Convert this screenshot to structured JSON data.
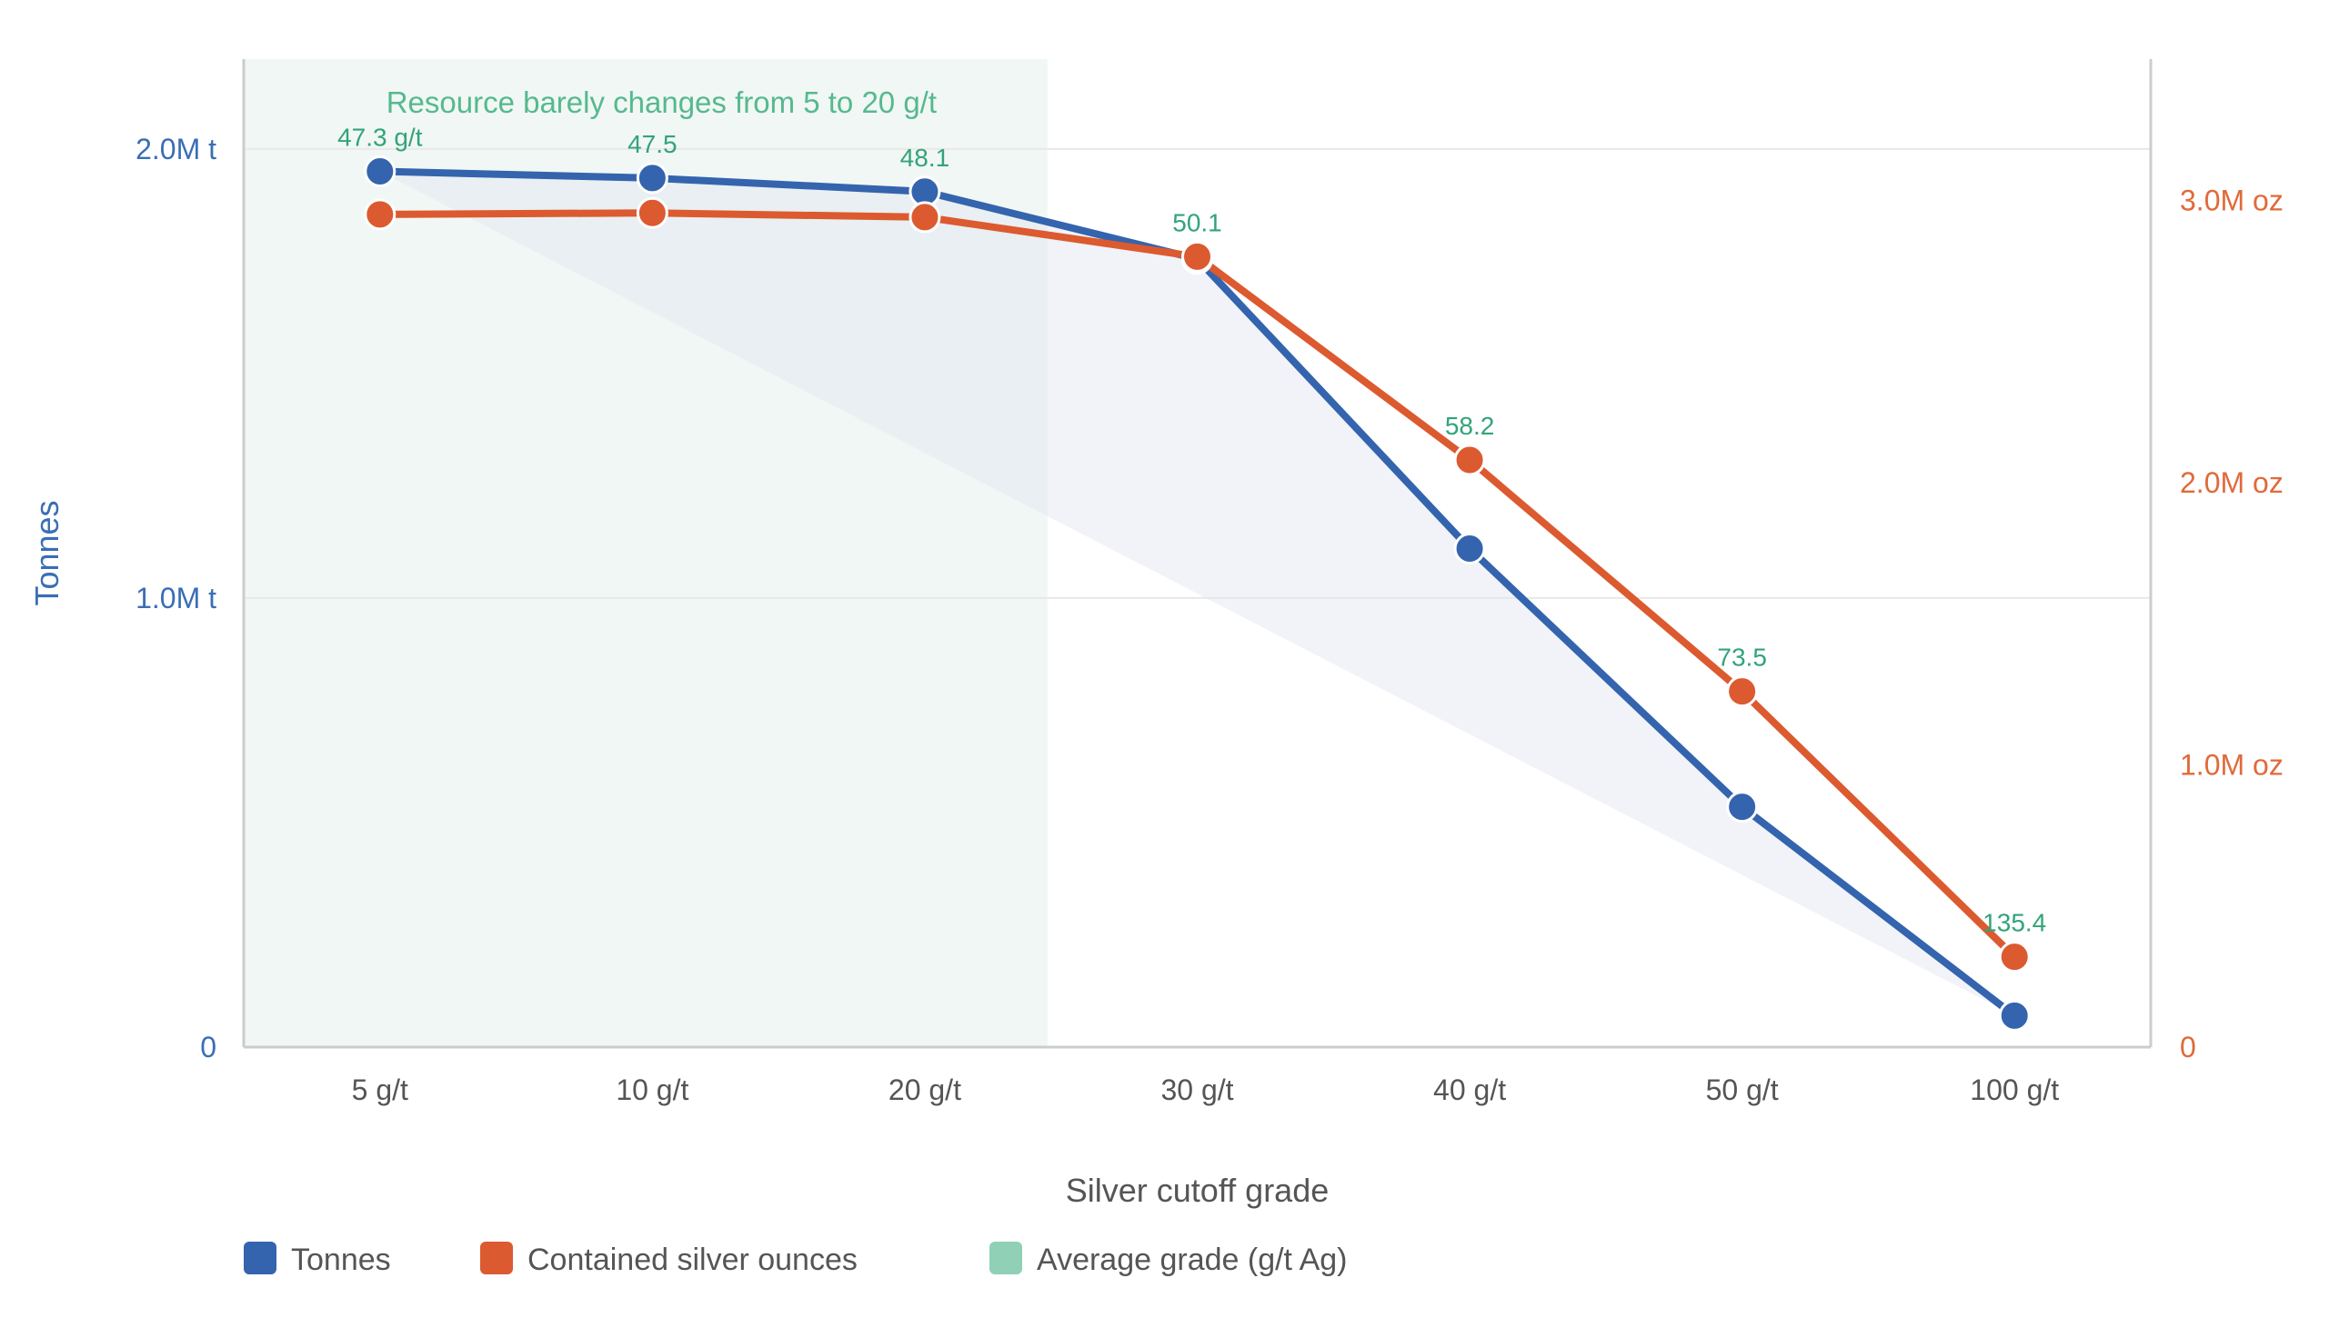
{
  "chart_data": {
    "type": "line",
    "categories": [
      "5 g/t",
      "10 g/t",
      "20 g/t",
      "30 g/t",
      "40 g/t",
      "50 g/t",
      "100 g/t"
    ],
    "x_positions": [
      5,
      10,
      20,
      30,
      40,
      50,
      100
    ],
    "xlabel": "Silver cutoff grade",
    "ylabel_left": "Tonnes",
    "ylabel_right": "",
    "ylim_left": [
      0,
      2200000
    ],
    "ylim_right": [
      0,
      3500000
    ],
    "yticks_left": [
      {
        "value": 0,
        "label": "0"
      },
      {
        "value": 1000000,
        "label": "1.0M t"
      },
      {
        "value": 2000000,
        "label": "2.0M t"
      }
    ],
    "yticks_right": [
      {
        "value": 0,
        "label": "0"
      },
      {
        "value": 1000000,
        "label": "1.0M oz"
      },
      {
        "value": 2000000,
        "label": "2.0M oz"
      },
      {
        "value": 3000000,
        "label": "3.0M oz"
      }
    ],
    "series": [
      {
        "name": "Tonnes",
        "axis": "left",
        "color": "#3464ae",
        "values": [
          1950000,
          1935000,
          1905000,
          1755000,
          1110000,
          535000,
          70000
        ]
      },
      {
        "name": "Contained silver ounces",
        "axis": "right",
        "color": "#dc5a2f",
        "values": [
          2950000,
          2955000,
          2940000,
          2800000,
          2080000,
          1260000,
          320000
        ]
      },
      {
        "name": "Average grade (g/t Ag)",
        "axis": "none",
        "color": "#8fd0b6",
        "values": [
          47.3,
          47.5,
          48.1,
          50.1,
          58.2,
          73.5,
          135.4
        ],
        "labels": [
          "47.3 g/t",
          "47.5",
          "48.1",
          "50.1",
          "58.2",
          "73.5",
          "135.4"
        ]
      }
    ],
    "annotation": {
      "text": "Resource barely changes from 5 to 20 g/t",
      "from": "5 g/t",
      "to": "20 g/t"
    },
    "grid": true,
    "legend_position": "bottom-left"
  }
}
